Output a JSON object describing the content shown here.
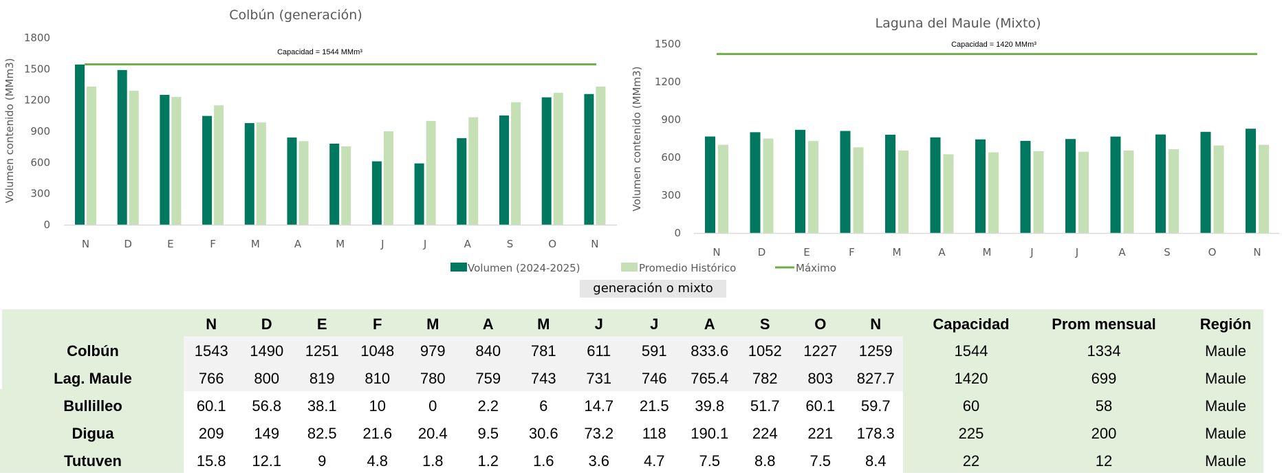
{
  "colors": {
    "volumen": "#00775f",
    "promedio": "#c5e0b4",
    "maximo": "#70ad47",
    "table_bg": "#e2efda",
    "cell_gray": "#f2f2f2"
  },
  "chart_data": [
    {
      "type": "bar",
      "title": "Colbún (generación)",
      "ylabel": "Volumen contenido (MMm3)",
      "xlabel": "",
      "ylim": [
        0,
        1800
      ],
      "yticks": [
        "0",
        "300",
        "600",
        "900",
        "1200",
        "1500",
        "1800"
      ],
      "categories": [
        "N",
        "D",
        "E",
        "F",
        "M",
        "A",
        "M",
        "J",
        "J",
        "A",
        "S",
        "O",
        "N"
      ],
      "series": [
        {
          "name": "Volumen (2024-2025)",
          "values": [
            1543,
            1490,
            1251,
            1048,
            979,
            840,
            781,
            611,
            591,
            833.6,
            1052,
            1227,
            1259
          ]
        },
        {
          "name": "Promedio Histórico",
          "values": [
            1330,
            1290,
            1230,
            1150,
            985,
            805,
            755,
            900,
            1000,
            1035,
            1180,
            1270,
            1330
          ]
        }
      ],
      "max_line": {
        "name": "Máximo",
        "value": 1544,
        "label": "Capacidad = 1544  MMm³"
      },
      "grid": false
    },
    {
      "type": "bar",
      "title": "Laguna del Maule (Mixto)",
      "ylabel": "Volumen contenido (MMm3)",
      "xlabel": "",
      "ylim": [
        0,
        1500
      ],
      "yticks": [
        "0",
        "300",
        "600",
        "900",
        "1200",
        "1500"
      ],
      "categories": [
        "N",
        "D",
        "E",
        "F",
        "M",
        "A",
        "M",
        "J",
        "J",
        "A",
        "S",
        "O",
        "N"
      ],
      "series": [
        {
          "name": "Volumen (2024-2025)",
          "values": [
            766,
            800,
            819,
            810,
            780,
            759,
            743,
            731,
            746,
            765.4,
            782,
            803,
            827.7
          ]
        },
        {
          "name": "Promedio Histórico",
          "values": [
            700,
            750,
            730,
            680,
            655,
            625,
            640,
            650,
            645,
            655,
            665,
            695,
            700
          ]
        }
      ],
      "max_line": {
        "name": "Máximo",
        "value": 1420,
        "label": "Capacidad = 1420  MMm³"
      },
      "grid": false
    }
  ],
  "legend": [
    {
      "label": "Volumen (2024-2025)",
      "kind": "box",
      "color": "#00775f"
    },
    {
      "label": "Promedio Histórico",
      "kind": "box",
      "color": "#c5e0b4"
    },
    {
      "label": "Máximo",
      "kind": "line",
      "color": "#70ad47"
    }
  ],
  "note": "generación o mixto",
  "table": {
    "headers": [
      "N",
      "D",
      "E",
      "F",
      "M",
      "A",
      "M",
      "J",
      "J",
      "A",
      "S",
      "O",
      "N"
    ],
    "extra_headers": [
      "Capacidad",
      "Prom mensual",
      "Región"
    ],
    "rows": [
      {
        "name": "Colbún",
        "values": [
          "1543",
          "1490",
          "1251",
          "1048",
          "979",
          "840",
          "781",
          "611",
          "591",
          "833.6",
          "1052",
          "1227",
          "1259"
        ],
        "capacidad": "1544",
        "prom": "1334",
        "region": "Maule"
      },
      {
        "name": "Lag. Maule",
        "values": [
          "766",
          "800",
          "819",
          "810",
          "780",
          "759",
          "743",
          "731",
          "746",
          "765.4",
          "782",
          "803",
          "827.7"
        ],
        "capacidad": "1420",
        "prom": "699",
        "region": "Maule"
      },
      {
        "name": "Bullilleo",
        "values": [
          "60.1",
          "56.8",
          "38.1",
          "10",
          "0",
          "2.2",
          "6",
          "14.7",
          "21.5",
          "39.8",
          "51.7",
          "60.1",
          "59.7"
        ],
        "capacidad": "60",
        "prom": "58",
        "region": "Maule"
      },
      {
        "name": "Digua",
        "values": [
          "209",
          "149",
          "82.5",
          "21.6",
          "20.4",
          "9.5",
          "30.6",
          "73.2",
          "118",
          "190.1",
          "224",
          "221",
          "178.3"
        ],
        "capacidad": "225",
        "prom": "200",
        "region": "Maule"
      },
      {
        "name": "Tutuven",
        "values": [
          "15.8",
          "12.1",
          "9",
          "4.8",
          "1.8",
          "1.2",
          "1.6",
          "3.6",
          "4.7",
          "7.5",
          "8.8",
          "7.5",
          "8.4"
        ],
        "capacidad": "22",
        "prom": "12",
        "region": "Maule"
      }
    ]
  }
}
